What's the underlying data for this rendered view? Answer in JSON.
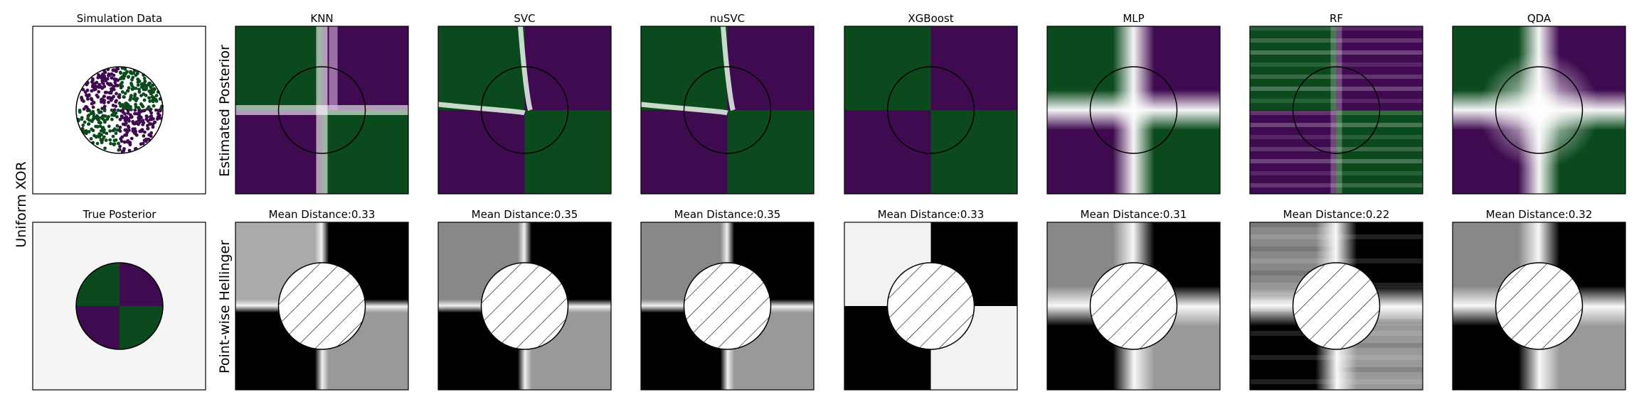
{
  "figure": {
    "row_label": "Uniform XOR",
    "top_row_ylabel": "Estimated Posterior",
    "bottom_row_ylabel": "Point-wise Hellinger",
    "sim_title": "Simulation Data",
    "true_title": "True Posterior"
  },
  "colors": {
    "class0": "#0b4a1d",
    "class1": "#3f0a4f",
    "white": "#ffffff",
    "bg": "#f5f5f5"
  },
  "chart_data": {
    "type": "heatmap",
    "classifiers": [
      {
        "name": "KNN",
        "mean_distance_label": "Mean Distance:0.33",
        "mean_distance": 0.33,
        "style": "knn"
      },
      {
        "name": "SVC",
        "mean_distance_label": "Mean Distance:0.35",
        "mean_distance": 0.35,
        "style": "smooth"
      },
      {
        "name": "nuSVC",
        "mean_distance_label": "Mean Distance:0.35",
        "mean_distance": 0.35,
        "style": "smooth"
      },
      {
        "name": "XGBoost",
        "mean_distance_label": "Mean Distance:0.33",
        "mean_distance": 0.33,
        "style": "blocky"
      },
      {
        "name": "MLP",
        "mean_distance_label": "Mean Distance:0.31",
        "mean_distance": 0.31,
        "style": "soft"
      },
      {
        "name": "RF",
        "mean_distance_label": "Mean Distance:0.22",
        "mean_distance": 0.22,
        "style": "rf"
      },
      {
        "name": "QDA",
        "mean_distance_label": "Mean Distance:0.32",
        "mean_distance": 0.32,
        "style": "qda"
      }
    ],
    "circle_radius": 0.5
  }
}
